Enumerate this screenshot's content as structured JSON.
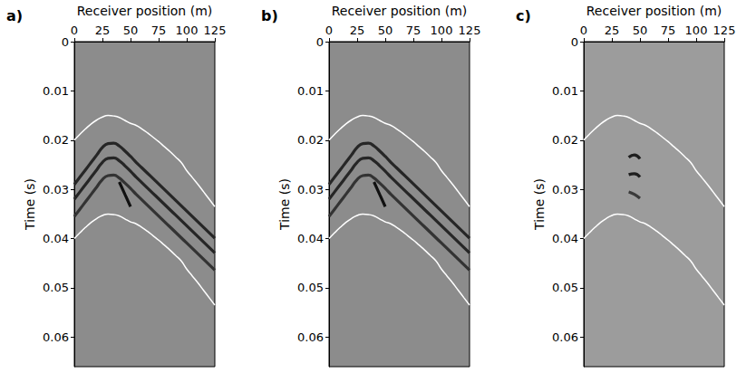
{
  "chart_data": [
    {
      "type": "line",
      "title": "a)",
      "xlabel": "Receiver position (m)",
      "ylabel": "Time (s)",
      "xlim": [
        0,
        125
      ],
      "ylim": [
        0,
        0.066
      ],
      "xticks": [
        0,
        25,
        50,
        75,
        100,
        125
      ],
      "yticks": [
        0,
        0.01,
        0.02,
        0.03,
        0.04,
        0.05,
        0.06
      ],
      "grid": false,
      "x": [
        0,
        5,
        10,
        15,
        20,
        25,
        30,
        35,
        40,
        45,
        50,
        55,
        60,
        65,
        70,
        75,
        80,
        85,
        90,
        95,
        100,
        105,
        110,
        115,
        120,
        125
      ],
      "series": [
        {
          "color": "#262626",
          "line_style": "solid",
          "values": [
            0.029,
            0.0275,
            0.026,
            0.0245,
            0.023,
            0.0215,
            0.0207,
            0.0206,
            0.0212,
            0.0222,
            0.0233,
            0.0245,
            0.0256,
            0.0267,
            0.0278,
            0.0289,
            0.03,
            0.0311,
            0.0322,
            0.0333,
            0.0344,
            0.0355,
            0.0366,
            0.0377,
            0.0388,
            0.0399
          ]
        },
        {
          "color": "#262626",
          "line_style": "solid",
          "values": [
            0.032,
            0.0305,
            0.029,
            0.0275,
            0.026,
            0.0245,
            0.0237,
            0.0236,
            0.0242,
            0.0252,
            0.0263,
            0.0275,
            0.0286,
            0.0297,
            0.0308,
            0.0319,
            0.033,
            0.0341,
            0.0352,
            0.0363,
            0.0374,
            0.0385,
            0.0396,
            0.0407,
            0.0418,
            0.0429
          ]
        },
        {
          "color": "#333333",
          "line_style": "solid",
          "values": [
            0.0355,
            0.034,
            0.0325,
            0.031,
            0.0295,
            0.028,
            0.0272,
            0.0271,
            0.0277,
            0.0287,
            0.0298,
            0.031,
            0.0321,
            0.0332,
            0.0343,
            0.0354,
            0.0365,
            0.0376,
            0.0387,
            0.0398,
            0.0409,
            0.042,
            0.0431,
            0.0442,
            0.0453,
            0.0464
          ]
        },
        {
          "color": "#111111",
          "line_style": "solid",
          "values": [
            null,
            null,
            null,
            null,
            null,
            null,
            null,
            null,
            0.0285,
            0.031,
            0.0335,
            null,
            null,
            null,
            null,
            null,
            null,
            null,
            null,
            null,
            null,
            null,
            null,
            null,
            null,
            null
          ]
        },
        {
          "color": "#ffffff",
          "line_style": "solid",
          "values": [
            0.02,
            0.0188,
            0.0177,
            0.0167,
            0.0159,
            0.0153,
            0.015,
            0.0151,
            0.0154,
            0.016,
            0.0166,
            0.017,
            0.0177,
            0.0185,
            0.0194,
            0.0203,
            0.0213,
            0.0223,
            0.0234,
            0.0245,
            0.0262,
            0.0276,
            0.029,
            0.0305,
            0.032,
            0.0335
          ]
        },
        {
          "color": "#ffffff",
          "line_style": "solid",
          "values": [
            0.04,
            0.0388,
            0.0377,
            0.0367,
            0.0359,
            0.0353,
            0.035,
            0.0351,
            0.0354,
            0.036,
            0.0366,
            0.037,
            0.0377,
            0.0385,
            0.0394,
            0.0403,
            0.0413,
            0.0423,
            0.0434,
            0.0445,
            0.0462,
            0.0476,
            0.049,
            0.0505,
            0.052,
            0.0535
          ]
        }
      ]
    },
    {
      "type": "line",
      "title": "b)",
      "xlabel": "Receiver position (m)",
      "ylabel": "Time (s)",
      "xlim": [
        0,
        125
      ],
      "ylim": [
        0,
        0.066
      ],
      "xticks": [
        0,
        25,
        50,
        75,
        100,
        125
      ],
      "yticks": [
        0,
        0.01,
        0.02,
        0.03,
        0.04,
        0.05,
        0.06
      ],
      "grid": false,
      "x": [
        0,
        5,
        10,
        15,
        20,
        25,
        30,
        35,
        40,
        45,
        50,
        55,
        60,
        65,
        70,
        75,
        80,
        85,
        90,
        95,
        100,
        105,
        110,
        115,
        120,
        125
      ],
      "series": [
        {
          "color": "#262626",
          "line_style": "solid",
          "values": [
            0.029,
            0.0275,
            0.026,
            0.0245,
            0.023,
            0.0215,
            0.0207,
            0.0206,
            0.0212,
            0.0222,
            0.0233,
            0.0245,
            0.0256,
            0.0267,
            0.0278,
            0.0289,
            0.03,
            0.0311,
            0.0322,
            0.0333,
            0.0344,
            0.0355,
            0.0366,
            0.0377,
            0.0388,
            0.0399
          ]
        },
        {
          "color": "#262626",
          "line_style": "solid",
          "values": [
            0.032,
            0.0305,
            0.029,
            0.0275,
            0.026,
            0.0245,
            0.0237,
            0.0236,
            0.0242,
            0.0252,
            0.0263,
            0.0275,
            0.0286,
            0.0297,
            0.0308,
            0.0319,
            0.033,
            0.0341,
            0.0352,
            0.0363,
            0.0374,
            0.0385,
            0.0396,
            0.0407,
            0.0418,
            0.0429
          ]
        },
        {
          "color": "#333333",
          "line_style": "solid",
          "values": [
            0.0355,
            0.034,
            0.0325,
            0.031,
            0.0295,
            0.028,
            0.0272,
            0.0271,
            0.0277,
            0.0287,
            0.0298,
            0.031,
            0.0321,
            0.0332,
            0.0343,
            0.0354,
            0.0365,
            0.0376,
            0.0387,
            0.0398,
            0.0409,
            0.042,
            0.0431,
            0.0442,
            0.0453,
            0.0464
          ]
        },
        {
          "color": "#111111",
          "line_style": "solid",
          "values": [
            null,
            null,
            null,
            null,
            null,
            null,
            null,
            null,
            0.0285,
            0.031,
            0.0335,
            null,
            null,
            null,
            null,
            null,
            null,
            null,
            null,
            null,
            null,
            null,
            null,
            null,
            null,
            null
          ]
        },
        {
          "color": "#ffffff",
          "line_style": "solid",
          "values": [
            0.02,
            0.0188,
            0.0177,
            0.0167,
            0.0159,
            0.0153,
            0.015,
            0.0151,
            0.0154,
            0.016,
            0.0166,
            0.017,
            0.0177,
            0.0185,
            0.0194,
            0.0203,
            0.0213,
            0.0223,
            0.0234,
            0.0245,
            0.0262,
            0.0276,
            0.029,
            0.0305,
            0.032,
            0.0335
          ]
        },
        {
          "color": "#ffffff",
          "line_style": "solid",
          "values": [
            0.04,
            0.0388,
            0.0377,
            0.0367,
            0.0359,
            0.0353,
            0.035,
            0.0351,
            0.0354,
            0.036,
            0.0366,
            0.037,
            0.0377,
            0.0385,
            0.0394,
            0.0403,
            0.0413,
            0.0423,
            0.0434,
            0.0445,
            0.0462,
            0.0476,
            0.049,
            0.0505,
            0.052,
            0.0535
          ]
        }
      ]
    },
    {
      "type": "line",
      "title": "c)",
      "xlabel": "Receiver position (m)",
      "ylabel": "Time (s)",
      "xlim": [
        0,
        125
      ],
      "ylim": [
        0,
        0.066
      ],
      "xticks": [
        0,
        25,
        50,
        75,
        100,
        125
      ],
      "yticks": [
        0,
        0.01,
        0.02,
        0.03,
        0.04,
        0.05,
        0.06
      ],
      "grid": false,
      "x": [
        0,
        5,
        10,
        15,
        20,
        25,
        30,
        35,
        40,
        45,
        50,
        55,
        60,
        65,
        70,
        75,
        80,
        85,
        90,
        95,
        100,
        105,
        110,
        115,
        120,
        125
      ],
      "series": [
        {
          "color": "#1e1e1e",
          "line_style": "solid",
          "values": [
            null,
            null,
            null,
            null,
            null,
            null,
            null,
            null,
            0.0235,
            0.023,
            0.0238,
            null,
            null,
            null,
            null,
            null,
            null,
            null,
            null,
            null,
            null,
            null,
            null,
            null,
            null,
            null
          ]
        },
        {
          "color": "#1e1e1e",
          "line_style": "solid",
          "values": [
            null,
            null,
            null,
            null,
            null,
            null,
            null,
            null,
            0.027,
            0.0268,
            0.0275,
            null,
            null,
            null,
            null,
            null,
            null,
            null,
            null,
            null,
            null,
            null,
            null,
            null,
            null,
            null
          ]
        },
        {
          "color": "#3a3a3a",
          "line_style": "solid",
          "values": [
            null,
            null,
            null,
            null,
            null,
            null,
            null,
            null,
            0.0305,
            0.031,
            0.0318,
            null,
            null,
            null,
            null,
            null,
            null,
            null,
            null,
            null,
            null,
            null,
            null,
            null,
            null,
            null
          ]
        },
        {
          "color": "#ffffff",
          "line_style": "solid",
          "values": [
            0.02,
            0.0188,
            0.0177,
            0.0167,
            0.0159,
            0.0153,
            0.015,
            0.0151,
            0.0154,
            0.016,
            0.0166,
            0.017,
            0.0177,
            0.0185,
            0.0194,
            0.0203,
            0.0213,
            0.0223,
            0.0234,
            0.0245,
            0.0262,
            0.0276,
            0.029,
            0.0305,
            0.032,
            0.0335
          ]
        },
        {
          "color": "#ffffff",
          "line_style": "solid",
          "values": [
            0.04,
            0.0388,
            0.0377,
            0.0367,
            0.0359,
            0.0353,
            0.035,
            0.0351,
            0.0354,
            0.036,
            0.0366,
            0.037,
            0.0377,
            0.0385,
            0.0394,
            0.0403,
            0.0413,
            0.0423,
            0.0434,
            0.0445,
            0.0462,
            0.0476,
            0.049,
            0.0505,
            0.052,
            0.0535
          ]
        }
      ]
    }
  ]
}
